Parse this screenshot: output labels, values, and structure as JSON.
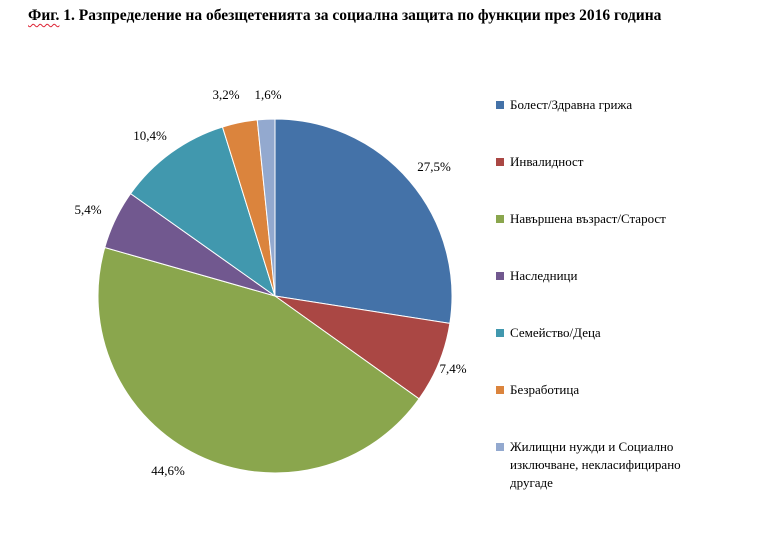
{
  "title": {
    "prefix": "Фиг.",
    "text": " 1. Разпределение на обезщетенията за социална защита по функции през 2016 година"
  },
  "chart_data": {
    "type": "pie",
    "start_angle_deg": 0,
    "direction": "clockwise",
    "legend_position": "right",
    "slices": [
      {
        "name": "Болест/Здравна грижа",
        "value": 27.5,
        "label": "27,5%",
        "color": "#4472a8"
      },
      {
        "name": "Инвалидност",
        "value": 7.4,
        "label": "7,4%",
        "color": "#aa4744"
      },
      {
        "name": "Навършена възраст/Старост",
        "value": 44.6,
        "label": "44,6%",
        "color": "#8aa64d"
      },
      {
        "name": "Наследници",
        "value": 5.4,
        "label": "5,4%",
        "color": "#71588f"
      },
      {
        "name": "Семейство/Деца",
        "value": 10.4,
        "label": "10,4%",
        "color": "#4198ae"
      },
      {
        "name": "Безработица",
        "value": 3.2,
        "label": "3,2%",
        "color": "#db843d"
      },
      {
        "name": "Жилищни нужди и Социално изключване, некласифицирано другаде",
        "value": 1.6,
        "label": "1,6%",
        "color": "#93a9cf"
      }
    ]
  }
}
